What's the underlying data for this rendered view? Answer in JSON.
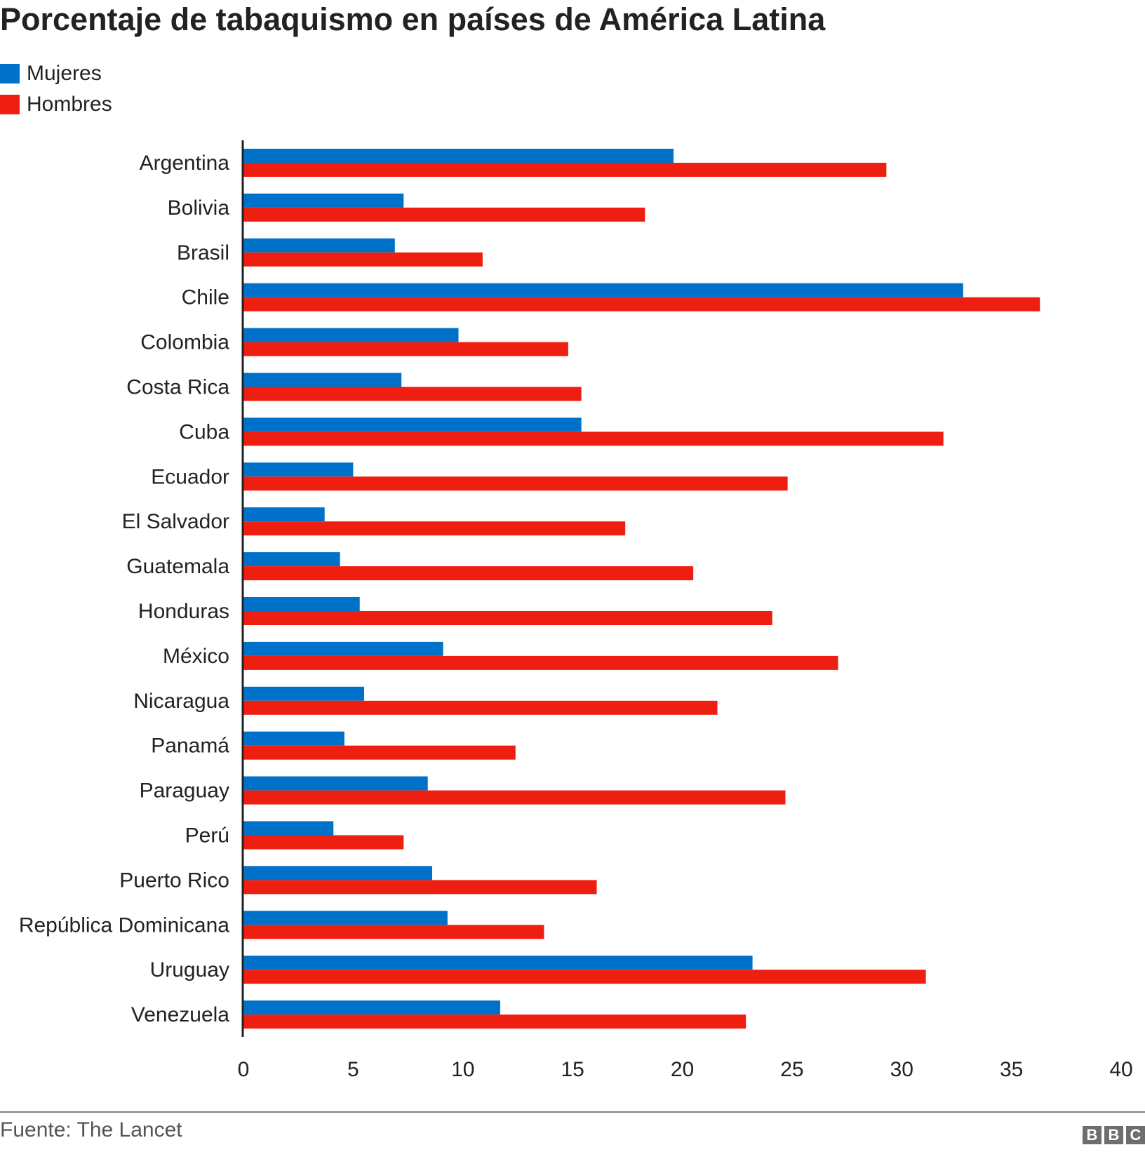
{
  "chart_data": {
    "type": "bar",
    "orientation": "horizontal",
    "title": "Porcentaje de tabaquismo en países de América Latina",
    "source": "Fuente: The Lancet",
    "logo": "BBC",
    "legend_position": "top-left",
    "grid": false,
    "xlim": [
      0,
      40
    ],
    "xticks": [
      0,
      5,
      10,
      15,
      20,
      25,
      30,
      35,
      40
    ],
    "categories": [
      "Argentina",
      "Bolivia",
      "Brasil",
      "Chile",
      "Colombia",
      "Costa Rica",
      "Cuba",
      "Ecuador",
      "El Salvador",
      "Guatemala",
      "Honduras",
      "México",
      "Nicaragua",
      "Panamá",
      "Paraguay",
      "Perú",
      "Puerto Rico",
      "República Dominicana",
      "Uruguay",
      "Venezuela"
    ],
    "series": [
      {
        "name": "Mujeres",
        "color": "#0071c9",
        "values": [
          19.6,
          7.3,
          6.9,
          32.8,
          9.8,
          7.2,
          15.4,
          5.0,
          3.7,
          4.4,
          5.3,
          9.1,
          5.5,
          4.6,
          8.4,
          4.1,
          8.6,
          9.3,
          23.2,
          11.7
        ]
      },
      {
        "name": "Hombres",
        "color": "#ee1e10",
        "values": [
          29.3,
          18.3,
          10.9,
          36.3,
          14.8,
          15.4,
          31.9,
          24.8,
          17.4,
          20.5,
          24.1,
          27.1,
          21.6,
          12.4,
          24.7,
          7.3,
          16.1,
          13.7,
          31.1,
          22.9
        ]
      }
    ]
  }
}
